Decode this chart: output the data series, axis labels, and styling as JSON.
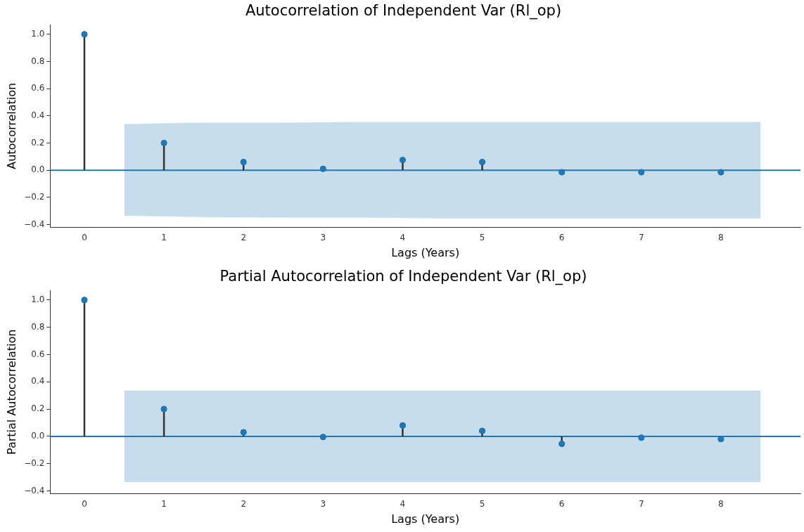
{
  "chart_data": [
    {
      "type": "lollipop",
      "title": "Autocorrelation of Independent Var (Rl_op)",
      "xlabel": "Lags (Years)",
      "ylabel": "Autocorrelation",
      "x": [
        0,
        1,
        2,
        3,
        4,
        5,
        6,
        7,
        8
      ],
      "series": [
        {
          "type": "line",
          "color": "#1f77b4",
          "marker": "none",
          "x": [
            -0.43,
            0.5,
            1.5,
            2.5,
            3.5,
            4.5,
            5.5,
            6.5,
            7.5,
            8.5,
            9.0
          ],
          "values": [
            0,
            0,
            0,
            0,
            0,
            0,
            0,
            0,
            0,
            0,
            0
          ],
          "lower": [
            null,
            -0.335,
            -0.345,
            -0.35,
            -0.35,
            -0.355,
            -0.355,
            -0.355,
            -0.355,
            -0.355,
            null
          ],
          "upper": [
            null,
            0.34,
            0.35,
            0.35,
            0.355,
            0.355,
            0.355,
            0.355,
            0.355,
            0.355,
            null
          ]
        },
        {
          "type": "lollipop",
          "color": "#1f77b4",
          "marker": "circle",
          "values": [
            1.0,
            0.2,
            0.06,
            0.01,
            0.075,
            0.06,
            -0.015,
            -0.015,
            -0.015
          ]
        }
      ],
      "xlim": [
        -0.43,
        9.0
      ],
      "xticks": [
        0,
        1,
        2,
        3,
        4,
        5,
        6,
        7,
        8
      ],
      "ylim": [
        -0.42,
        1.07
      ],
      "yticks": [
        {
          "value": -0.4,
          "label": "−0.4"
        },
        {
          "value": -0.2,
          "label": "−0.2"
        },
        {
          "value": 0,
          "label": "0.0"
        },
        0.2,
        0.4,
        0.6,
        0.8,
        {
          "value": 1,
          "label": "1.0"
        }
      ],
      "grid": false
    },
    {
      "type": "lollipop",
      "title": "Partial Autocorrelation of Independent Var (Rl_op)",
      "xlabel": "Lags (Years)",
      "ylabel": "Partial Autocorrelation",
      "x": [
        0,
        1,
        2,
        3,
        4,
        5,
        6,
        7,
        8
      ],
      "series": [
        {
          "type": "line",
          "color": "#1f77b4",
          "marker": "none",
          "x": [
            -0.43,
            0.5,
            8.5,
            9.0
          ],
          "values": [
            0,
            0,
            0,
            0
          ],
          "lower": [
            null,
            -0.335,
            -0.335,
            null
          ],
          "upper": [
            null,
            0.335,
            0.335,
            null
          ]
        },
        {
          "type": "lollipop",
          "color": "#1f77b4",
          "marker": "circle",
          "values": [
            1.0,
            0.2,
            0.03,
            -0.005,
            0.08,
            0.04,
            -0.055,
            -0.01,
            -0.02
          ]
        }
      ],
      "xlim": [
        -0.43,
        9.0
      ],
      "xticks": [
        0,
        1,
        2,
        3,
        4,
        5,
        6,
        7,
        8
      ],
      "ylim": [
        -0.42,
        1.07
      ],
      "yticks": [
        {
          "value": -0.4,
          "label": "−0.4"
        },
        {
          "value": -0.2,
          "label": "−0.2"
        },
        {
          "value": 0,
          "label": "0.0"
        },
        0.2,
        0.4,
        0.6,
        0.8,
        {
          "value": 1,
          "label": "1.0"
        }
      ],
      "grid": false
    }
  ]
}
